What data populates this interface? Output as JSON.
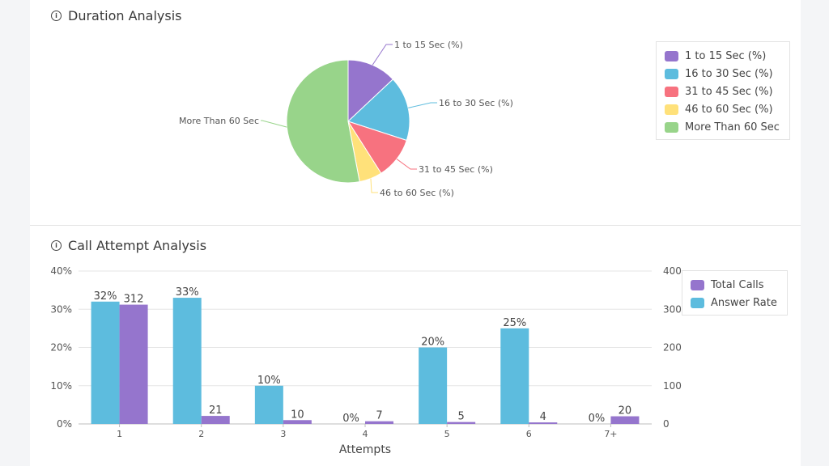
{
  "duration": {
    "title": "Duration Analysis",
    "chart_data": {
      "type": "pie",
      "labels": [
        "1 to 15 Sec (%)",
        "16 to 30 Sec (%)",
        "31 to 45 Sec (%)",
        "46 to 60 Sec (%)",
        "More Than 60 Sec"
      ],
      "values": [
        13,
        17,
        11,
        6,
        53
      ],
      "colors": [
        "#9575cd",
        "#5dbcde",
        "#f7727f",
        "#ffe17a",
        "#98d48a"
      ],
      "legend_position": "right"
    }
  },
  "attempts": {
    "title": "Call Attempt Analysis",
    "chart_data": {
      "type": "bar",
      "xlabel": "Attempts",
      "categories": [
        "1",
        "2",
        "3",
        "4",
        "5",
        "6",
        "7+"
      ],
      "series": [
        {
          "name": "Answer Rate",
          "axis": "left",
          "color": "#5dbcde",
          "values": [
            32,
            33,
            10,
            0,
            20,
            25,
            0
          ],
          "labels": [
            "32%",
            "33%",
            "10%",
            "0%",
            "20%",
            "25%",
            "0%"
          ]
        },
        {
          "name": "Total Calls",
          "axis": "right",
          "color": "#9575cd",
          "values": [
            312,
            21,
            10,
            7,
            5,
            4,
            20
          ],
          "labels": [
            "312",
            "21",
            "10",
            "7",
            "5",
            "4",
            "20"
          ]
        }
      ],
      "y_left": {
        "lim": [
          0,
          40
        ],
        "ticks": [
          "0%",
          "10%",
          "20%",
          "30%",
          "40%"
        ]
      },
      "y_right": {
        "lim": [
          0,
          400
        ],
        "ticks": [
          "0",
          "100",
          "200",
          "300",
          "400"
        ]
      },
      "legend": [
        "Total Calls",
        "Answer Rate"
      ],
      "legend_position": "top-right",
      "grid": true
    }
  }
}
